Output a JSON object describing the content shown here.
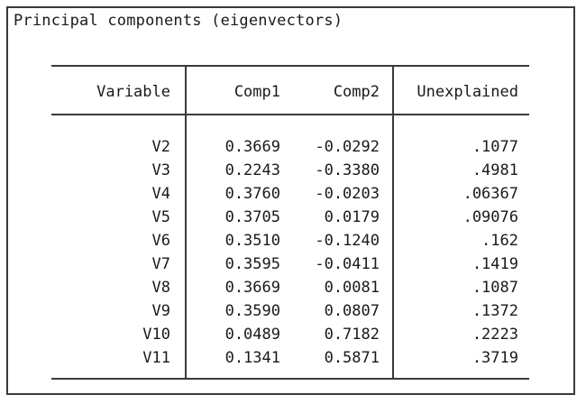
{
  "title": "Principal components (eigenvectors)",
  "table": {
    "headers": {
      "variable": "Variable",
      "comp1": "Comp1",
      "comp2": "Comp2",
      "unexplained": "Unexplained"
    },
    "rows": [
      {
        "variable": "V2",
        "comp1": "0.3669",
        "comp2": "-0.0292",
        "unexplained": ".1077"
      },
      {
        "variable": "V3",
        "comp1": "0.2243",
        "comp2": "-0.3380",
        "unexplained": ".4981"
      },
      {
        "variable": "V4",
        "comp1": "0.3760",
        "comp2": "-0.0203",
        "unexplained": ".06367"
      },
      {
        "variable": "V5",
        "comp1": "0.3705",
        "comp2": "0.0179",
        "unexplained": ".09076"
      },
      {
        "variable": "V6",
        "comp1": "0.3510",
        "comp2": "-0.1240",
        "unexplained": ".162"
      },
      {
        "variable": "V7",
        "comp1": "0.3595",
        "comp2": "-0.0411",
        "unexplained": ".1419"
      },
      {
        "variable": "V8",
        "comp1": "0.3669",
        "comp2": "0.0081",
        "unexplained": ".1087"
      },
      {
        "variable": "V9",
        "comp1": "0.3590",
        "comp2": "0.0807",
        "unexplained": ".1372"
      },
      {
        "variable": "V10",
        "comp1": "0.0489",
        "comp2": "0.7182",
        "unexplained": ".2223"
      },
      {
        "variable": "V11",
        "comp1": "0.1341",
        "comp2": "0.5871",
        "unexplained": ".3719"
      }
    ]
  }
}
